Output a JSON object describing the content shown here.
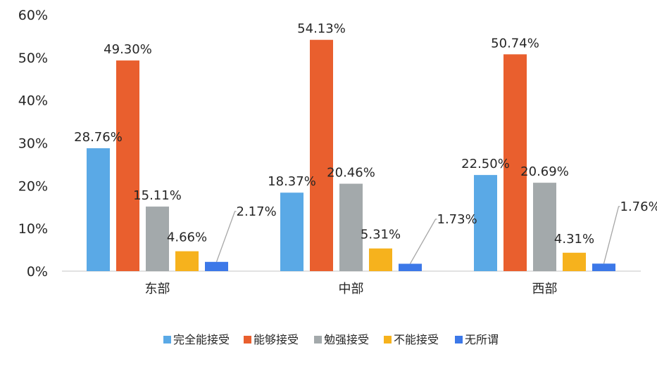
{
  "chart_data": {
    "type": "bar",
    "title": "",
    "xlabel": "",
    "ylabel": "",
    "categories": [
      "东部",
      "中部",
      "西部"
    ],
    "yticks": [
      "0%",
      "10%",
      "20%",
      "30%",
      "40%",
      "50%",
      "60%"
    ],
    "ylim": [
      0,
      60
    ],
    "unit": "%",
    "grid": false,
    "legend_position": "bottom",
    "series": [
      {
        "name": "完全能接受",
        "color": "#5aa9e6",
        "values": [
          28.76,
          18.37,
          22.5
        ],
        "labels": [
          "28.76%",
          "18.37%",
          "22.50%"
        ]
      },
      {
        "name": "能够接受",
        "color": "#e95f2e",
        "values": [
          49.3,
          54.13,
          50.74
        ],
        "labels": [
          "49.30%",
          "54.13%",
          "50.74%"
        ]
      },
      {
        "name": "勉强接受",
        "color": "#a3a9ab",
        "values": [
          15.11,
          20.46,
          20.69
        ],
        "labels": [
          "15.11%",
          "20.46%",
          "20.69%"
        ]
      },
      {
        "name": "不能接受",
        "color": "#f6b21d",
        "values": [
          4.66,
          5.31,
          4.31
        ],
        "labels": [
          "4.66%",
          "5.31%",
          "4.31%"
        ]
      },
      {
        "name": "无所谓",
        "color": "#3c78e8",
        "values": [
          2.17,
          1.73,
          1.76
        ],
        "labels": [
          "2.17%",
          "1.73%",
          "1.76%"
        ]
      }
    ]
  }
}
